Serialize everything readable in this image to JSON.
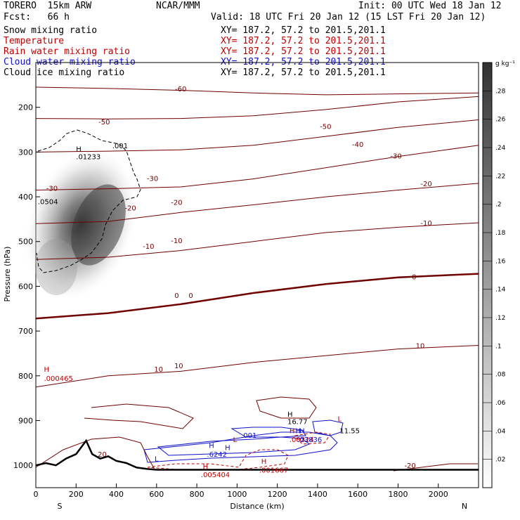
{
  "header": {
    "model": "TORERO  15km ARW",
    "center": "NCAR/MMM",
    "init": "Init: 00 UTC Wed 18 Jan 12",
    "fcst": "Fcst:   66 h",
    "valid": "Valid: 18 UTC Fri 20 Jan 12 (15 LST Fri 20 Jan 12)",
    "fields": [
      {
        "label": "Snow mixing ratio",
        "xy": "XY= 187.2, 57.2 to 201.5,201.1",
        "color": "#000000"
      },
      {
        "label": "Temperature",
        "xy": "XY= 187.2, 57.2 to 201.5,201.1",
        "color": "#c00000"
      },
      {
        "label": "Rain water mixing ratio",
        "xy": "XY= 187.2, 57.2 to 201.5,201.1",
        "color": "#c00000"
      },
      {
        "label": "Cloud water mixing ratio",
        "xy": "XY= 187.2, 57.2 to 201.5,201.1",
        "color": "#1010c8"
      },
      {
        "label": "Cloud ice mixing ratio",
        "xy": "XY= 187.2, 57.2 to 201.5,201.1",
        "color": "#000000"
      }
    ]
  },
  "chart_data": {
    "type": "contour",
    "xlabel": "Distance (km)",
    "ylabel": "Pressure (hPa)",
    "xlim": [
      0,
      2200
    ],
    "ylim": [
      1050,
      100
    ],
    "xticks": [
      "0",
      "200",
      "400",
      "600",
      "800",
      "1000",
      "1200",
      "1400",
      "1600",
      "1800",
      "2000"
    ],
    "yticks": [
      "200",
      "300",
      "400",
      "500",
      "600",
      "700",
      "800",
      "900",
      "1000"
    ],
    "x_end_labels": {
      "left": "S",
      "right": "N"
    },
    "colorbar": {
      "unit": "g kg⁻¹",
      "ticks": [
        ".02",
        ".04",
        ".06",
        ".08",
        ".1",
        ".12",
        ".14",
        ".16",
        ".18",
        ".2",
        ".22",
        ".24",
        ".26",
        ".28"
      ]
    },
    "temperature_contours": [
      {
        "level": -60,
        "y": [
          155,
          158,
          162,
          168,
          172,
          170,
          168
        ]
      },
      {
        "level": -50,
        "y": [
          225,
          226,
          225,
          219,
          205,
          188,
          176
        ]
      },
      {
        "level": -40,
        "y": [
          300,
          298,
          295,
          285,
          265,
          245,
          228
        ]
      },
      {
        "level": -30,
        "y": [
          385,
          382,
          378,
          360,
          335,
          310,
          285
        ]
      },
      {
        "level": -20,
        "y": [
          460,
          455,
          435,
          418,
          400,
          385,
          370
        ]
      },
      {
        "level": -10,
        "y": [
          540,
          535,
          520,
          500,
          480,
          468,
          458
        ]
      },
      {
        "level": 0,
        "y": [
          672,
          660,
          640,
          615,
          595,
          580,
          572
        ],
        "thick": true
      },
      {
        "level": 10,
        "y": [
          825,
          800,
          790,
          770,
          755,
          740,
          732
        ]
      }
    ],
    "temperature_x": [
      0,
      360,
      720,
      1080,
      1440,
      1800,
      2200
    ],
    "temperature_labels": [
      {
        "text": "-60",
        "x": 720,
        "y": 158
      },
      {
        "text": "-50",
        "x": 340,
        "y": 232
      },
      {
        "text": "-50",
        "x": 1440,
        "y": 242
      },
      {
        "text": "-40",
        "x": 1600,
        "y": 282
      },
      {
        "text": "-30",
        "x": 80,
        "y": 380
      },
      {
        "text": "-30",
        "x": 580,
        "y": 358
      },
      {
        "text": "-30",
        "x": 1790,
        "y": 308
      },
      {
        "text": "-20",
        "x": 470,
        "y": 424
      },
      {
        "text": "-20",
        "x": 700,
        "y": 412
      },
      {
        "text": "-20",
        "x": 1940,
        "y": 370
      },
      {
        "text": "-10",
        "x": 560,
        "y": 510
      },
      {
        "text": "-10",
        "x": 700,
        "y": 497
      },
      {
        "text": "-10",
        "x": 1940,
        "y": 458
      },
      {
        "text": "0",
        "x": 700,
        "y": 620
      },
      {
        "text": "0",
        "x": 770,
        "y": 620
      },
      {
        "text": "0",
        "x": 1880,
        "y": 578
      },
      {
        "text": "10",
        "x": 610,
        "y": 785
      },
      {
        "text": "10",
        "x": 710,
        "y": 777
      },
      {
        "text": "10",
        "x": 1910,
        "y": 732
      },
      {
        "text": "20",
        "x": 330,
        "y": 975
      },
      {
        "text": "-20",
        "x": 1860,
        "y": 1000
      }
    ],
    "annotations": [
      {
        "text": "H",
        "x": 200,
        "y": 292,
        "color": "#000000"
      },
      {
        "text": ".01233",
        "x": 200,
        "y": 310,
        "color": "#000000"
      },
      {
        "text": ".001",
        "x": 380,
        "y": 285,
        "color": "#000000"
      },
      {
        "text": ".0504",
        "x": 10,
        "y": 410,
        "color": "#000000"
      },
      {
        "text": "H",
        "x": 40,
        "y": 785,
        "color": "#c00000"
      },
      {
        "text": ".000465",
        "x": 40,
        "y": 805,
        "color": "#c00000"
      },
      {
        "text": "H",
        "x": 1250,
        "y": 885,
        "color": "#000000"
      },
      {
        "text": "16.77",
        "x": 1250,
        "y": 902,
        "color": "#000000"
      },
      {
        "text": "L",
        "x": 1500,
        "y": 895,
        "color": "#c00000"
      },
      {
        "text": "11.55",
        "x": 1510,
        "y": 922,
        "color": "#000000"
      },
      {
        "text": "H",
        "x": 1260,
        "y": 922,
        "color": "#c00000"
      },
      {
        "text": "H",
        "x": 1290,
        "y": 922,
        "color": "#1010c8"
      },
      {
        "text": "H",
        "x": 1310,
        "y": 922,
        "color": "#1010c8"
      },
      {
        "text": ".00224",
        "x": 1260,
        "y": 942,
        "color": "#c00000"
      },
      {
        "text": ".03836",
        "x": 1300,
        "y": 942,
        "color": "#1010c8"
      },
      {
        "text": "L",
        "x": 980,
        "y": 942,
        "color": "#c00000"
      },
      {
        "text": ".001",
        "x": 1020,
        "y": 932,
        "color": "#1010c8"
      },
      {
        "text": "H",
        "x": 860,
        "y": 955,
        "color": "#1010c8"
      },
      {
        "text": ".6242",
        "x": 850,
        "y": 975,
        "color": "#1010c8"
      },
      {
        "text": "H",
        "x": 830,
        "y": 1002,
        "color": "#c00000"
      },
      {
        "text": ".005404",
        "x": 820,
        "y": 1020,
        "color": "#c00000"
      },
      {
        "text": "H",
        "x": 1120,
        "y": 990,
        "color": "#c00000"
      },
      {
        "text": ".001667",
        "x": 1110,
        "y": 1010,
        "color": "#c00000"
      },
      {
        "text": "L",
        "x": 590,
        "y": 985,
        "color": "#1010c8"
      },
      {
        "text": "H",
        "x": 940,
        "y": 960,
        "color": "#1010c8"
      }
    ],
    "terrain_x": [
      0,
      50,
      100,
      150,
      200,
      250,
      280,
      320,
      360,
      400,
      450,
      500,
      550,
      600,
      800,
      1200,
      1600,
      2000,
      2200
    ],
    "terrain_p": [
      1000,
      995,
      1000,
      985,
      975,
      945,
      975,
      985,
      980,
      990,
      995,
      1005,
      1008,
      1010,
      1010,
      1010,
      1010,
      1010,
      1010
    ]
  }
}
